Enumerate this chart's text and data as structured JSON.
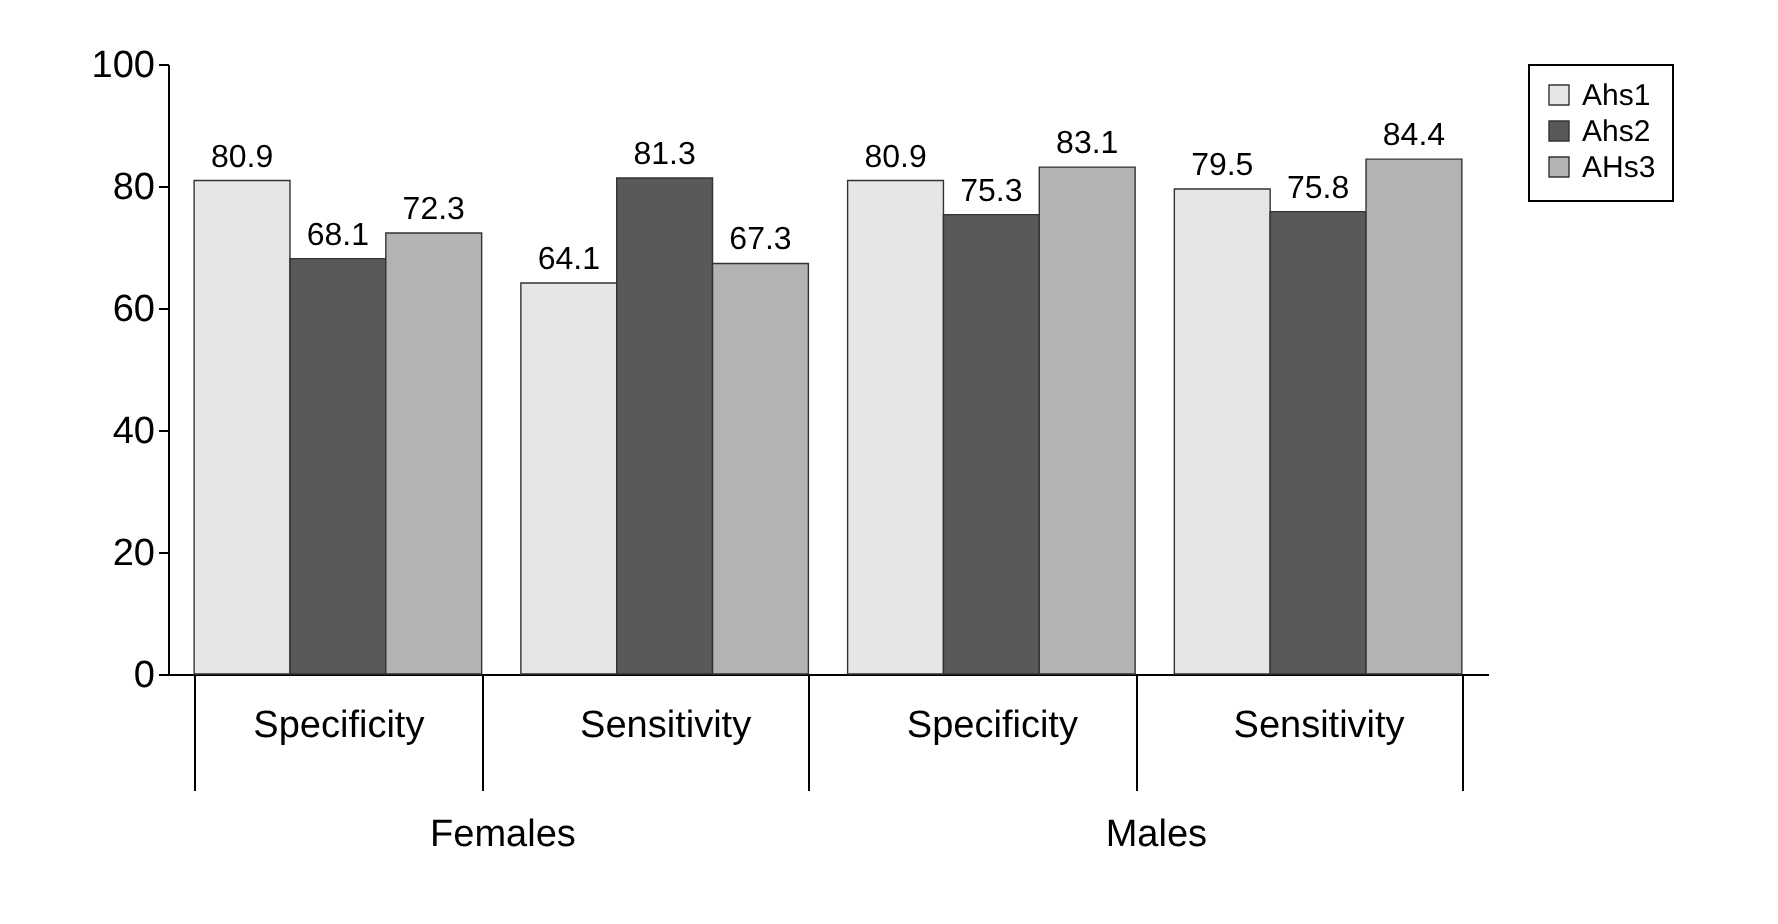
{
  "chart_data": {
    "type": "bar",
    "categories": [
      "Specificity",
      "Sensitivity",
      "Specificity",
      "Sensitivity"
    ],
    "series": [
      {
        "name": "Ahs1",
        "color": "#e6e6e6",
        "values": [
          80.9,
          64.1,
          80.9,
          79.5
        ]
      },
      {
        "name": "Ahs2",
        "color": "#595959",
        "values": [
          68.1,
          81.3,
          75.3,
          75.8
        ]
      },
      {
        "name": "AHs3",
        "color": "#b3b3b3",
        "values": [
          72.3,
          67.3,
          83.1,
          84.4
        ]
      }
    ],
    "ylim": [
      0,
      100
    ],
    "yticks": [
      0,
      20,
      40,
      60,
      80,
      100
    ],
    "grid": false,
    "legend": "right",
    "data_labels": true,
    "annotations": [
      "Females",
      "Males"
    ]
  }
}
